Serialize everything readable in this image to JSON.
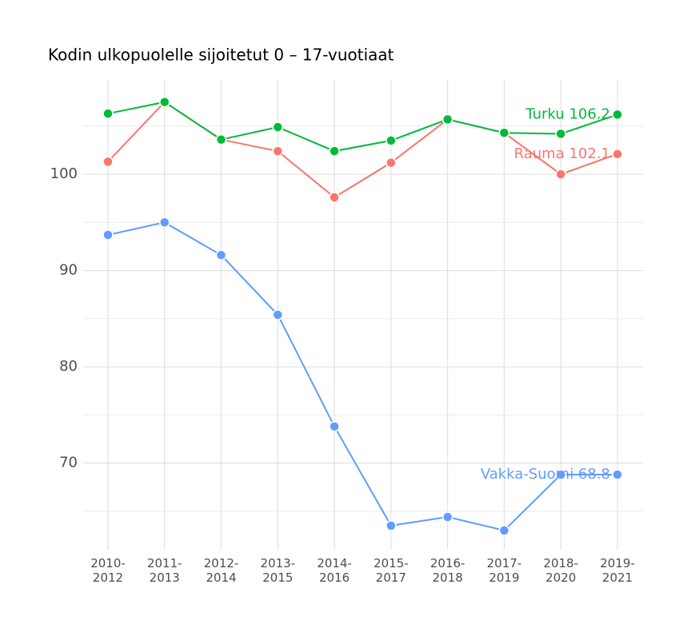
{
  "chart_data": {
    "type": "line",
    "title": "Kodin ulkopuolelle sijoitetut 0 – 17-vuotiaat",
    "categories": [
      "2010-2012",
      "2011-2013",
      "2012-2014",
      "2013-2015",
      "2014-2016",
      "2015-2017",
      "2016-2018",
      "2017-2019",
      "2018-2020",
      "2019-2021"
    ],
    "series": [
      {
        "name": "Rauma",
        "color": "#f8766d",
        "values": [
          101.3,
          107.5,
          103.6,
          102.4,
          97.6,
          101.2,
          105.7,
          104.3,
          100.0,
          102.1
        ],
        "value_labels": [
          null,
          null,
          null,
          null,
          null,
          null,
          null,
          null,
          null,
          "Rauma 102.1"
        ]
      },
      {
        "name": "Turku",
        "color": "#00ba38",
        "values": [
          106.3,
          107.5,
          103.6,
          104.9,
          102.4,
          103.5,
          105.7,
          104.3,
          104.2,
          106.2
        ],
        "value_labels": [
          null,
          null,
          null,
          null,
          null,
          null,
          null,
          null,
          null,
          "Turku 106.2"
        ]
      },
      {
        "name": "Vakka-Suomi",
        "color": "#619cff",
        "values": [
          93.7,
          95.0,
          91.6,
          85.4,
          73.8,
          63.5,
          64.4,
          63.0,
          68.8,
          68.8
        ],
        "value_labels": [
          null,
          null,
          null,
          null,
          null,
          null,
          null,
          null,
          null,
          "Vakka-Suomi 68.8"
        ]
      }
    ],
    "ylim": [
      61,
      109.8
    ],
    "yticks": [
      70,
      80,
      90,
      100
    ],
    "minor_yticks": [
      65,
      75,
      85,
      95,
      105
    ],
    "grid": true
  }
}
